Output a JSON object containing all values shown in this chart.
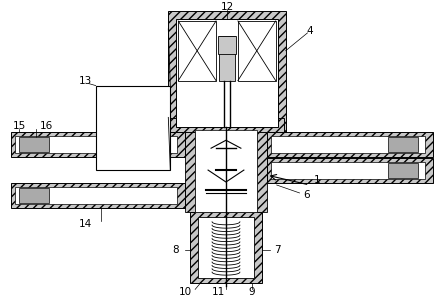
{
  "bg_color": "#ffffff",
  "lc": "#000000",
  "gray": "#c8c8c8",
  "figsize": [
    4.44,
    3.03
  ],
  "dpi": 100
}
